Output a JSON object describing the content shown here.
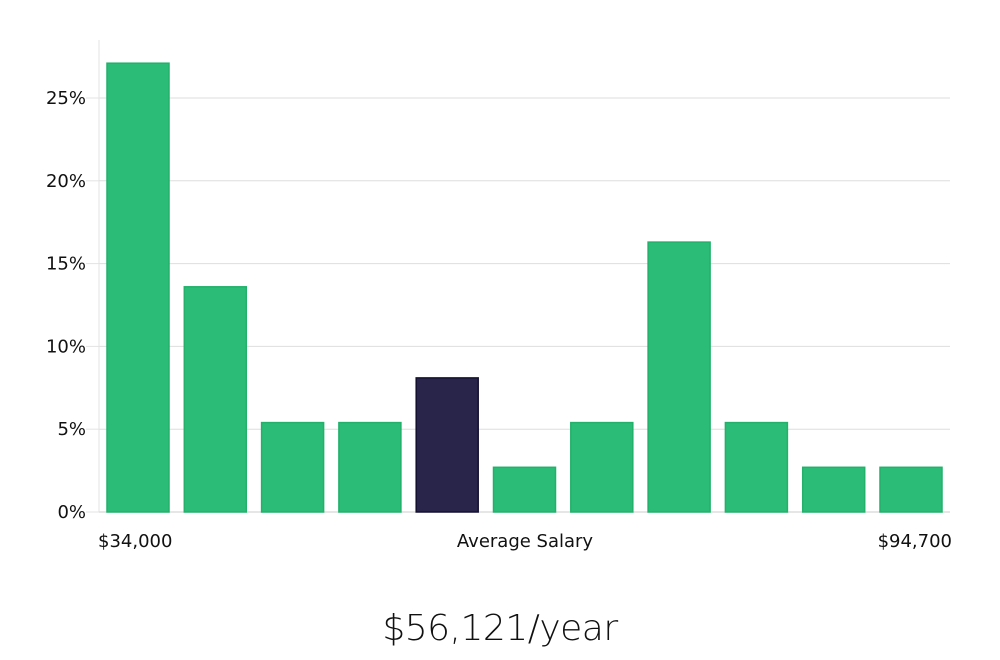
{
  "chart_data": {
    "type": "bar",
    "title": "",
    "ylabel": "",
    "ylim": [
      0,
      28.5
    ],
    "y_ticks": [
      0,
      5,
      10,
      15,
      20,
      25
    ],
    "y_tick_labels": [
      "0%",
      "5%",
      "10%",
      "15%",
      "20%",
      "25%"
    ],
    "values": [
      27.1,
      13.6,
      5.4,
      5.4,
      8.1,
      2.7,
      5.4,
      16.3,
      5.4,
      2.7,
      2.7
    ],
    "highlight_index": 4,
    "bar_color": "#2bbd77",
    "highlight_color": "#29254a",
    "grid": true,
    "x_label_left": "$34,000",
    "x_label_center": "Average Salary",
    "x_label_right": "$94,700"
  },
  "salary_summary": "$56,121/year"
}
